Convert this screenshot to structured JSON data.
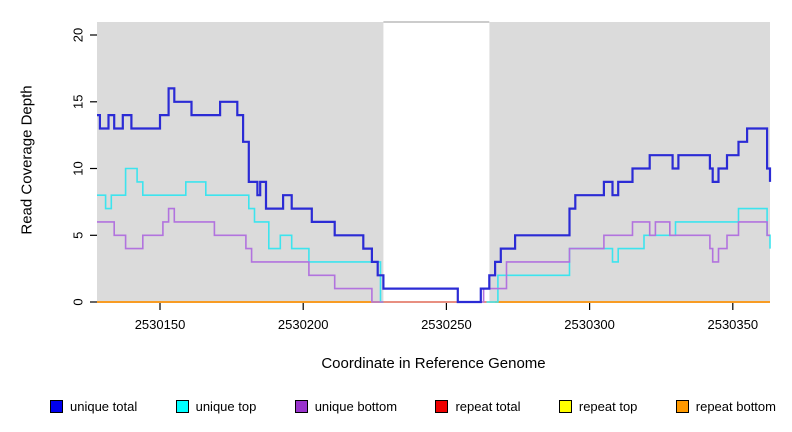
{
  "chart_data": {
    "type": "line",
    "subtype": "step-coverage",
    "title": "",
    "xlabel": "Coordinate in Reference Genome",
    "ylabel": "Read Coverage Depth",
    "xlim": [
      2530128,
      2530363
    ],
    "ylim": [
      0,
      21
    ],
    "xticks": [
      2530150,
      2530200,
      2530250,
      2530300,
      2530350
    ],
    "yticks": [
      0,
      5,
      10,
      15,
      20
    ],
    "grid": false,
    "panel_bg": "#DBDBDB",
    "highlight_band": {
      "x0": 2530228,
      "x1": 2530265,
      "color": "#FFFFFF"
    },
    "draw_order": [
      4,
      3,
      5,
      1,
      2,
      0
    ],
    "series": [
      {
        "name": "unique total",
        "color": "#2B2BD5",
        "width": 2.2,
        "segments": [
          [
            [
              2530128,
              14
            ],
            [
              2530129,
              13
            ],
            [
              2530132,
              14
            ],
            [
              2530134,
              13
            ],
            [
              2530137,
              14
            ],
            [
              2530140,
              13
            ],
            [
              2530150,
              14
            ],
            [
              2530153,
              16
            ],
            [
              2530155,
              15
            ],
            [
              2530161,
              14
            ],
            [
              2530171,
              15
            ],
            [
              2530177,
              14
            ],
            [
              2530179,
              12
            ],
            [
              2530181,
              9
            ],
            [
              2530184,
              8
            ],
            [
              2530185,
              9
            ],
            [
              2530187,
              7
            ],
            [
              2530193,
              8
            ],
            [
              2530196,
              7
            ],
            [
              2530203,
              6
            ],
            [
              2530211,
              5
            ],
            [
              2530221,
              4
            ],
            [
              2530224,
              3
            ],
            [
              2530226,
              2
            ],
            [
              2530228,
              1
            ],
            [
              2530254,
              0
            ],
            [
              2530262,
              1
            ],
            [
              2530265,
              2
            ],
            [
              2530267,
              3
            ],
            [
              2530269,
              4
            ],
            [
              2530274,
              5
            ],
            [
              2530293,
              7
            ],
            [
              2530295,
              8
            ],
            [
              2530305,
              9
            ],
            [
              2530308,
              8
            ],
            [
              2530310,
              9
            ],
            [
              2530315,
              10
            ],
            [
              2530321,
              11
            ],
            [
              2530329,
              10
            ],
            [
              2530331,
              11
            ],
            [
              2530342,
              10
            ],
            [
              2530343,
              9
            ],
            [
              2530345,
              10
            ],
            [
              2530348,
              11
            ],
            [
              2530352,
              12
            ],
            [
              2530355,
              13
            ],
            [
              2530362,
              10
            ],
            [
              2530363,
              9
            ]
          ]
        ]
      },
      {
        "name": "unique top",
        "color": "#3CE4EE",
        "width": 1.6,
        "segments": [
          [
            [
              2530128,
              8
            ],
            [
              2530131,
              7
            ],
            [
              2530133,
              8
            ],
            [
              2530138,
              10
            ],
            [
              2530142,
              9
            ],
            [
              2530144,
              8
            ],
            [
              2530159,
              9
            ],
            [
              2530166,
              8
            ],
            [
              2530181,
              7
            ],
            [
              2530183,
              6
            ],
            [
              2530188,
              4
            ],
            [
              2530192,
              5
            ],
            [
              2530196,
              4
            ],
            [
              2530202,
              3
            ],
            [
              2530227,
              0
            ],
            [
              2530228,
              0
            ]
          ],
          [
            [
              2530264,
              0
            ],
            [
              2530268,
              2
            ],
            [
              2530293,
              4
            ],
            [
              2530308,
              3
            ],
            [
              2530310,
              4
            ],
            [
              2530319,
              5
            ],
            [
              2530330,
              6
            ],
            [
              2530352,
              7
            ],
            [
              2530362,
              5
            ],
            [
              2530363,
              4
            ]
          ]
        ]
      },
      {
        "name": "unique bottom",
        "color": "#B273DE",
        "width": 1.6,
        "segments": [
          [
            [
              2530128,
              6
            ],
            [
              2530134,
              5
            ],
            [
              2530138,
              4
            ],
            [
              2530144,
              5
            ],
            [
              2530151,
              6
            ],
            [
              2530153,
              7
            ],
            [
              2530155,
              6
            ],
            [
              2530169,
              5
            ],
            [
              2530180,
              4
            ],
            [
              2530182,
              3
            ],
            [
              2530202,
              2
            ],
            [
              2530211,
              1
            ],
            [
              2530224,
              0
            ],
            [
              2530228,
              0
            ]
          ],
          [
            [
              2530262,
              0
            ],
            [
              2530263,
              1
            ],
            [
              2530271,
              3
            ],
            [
              2530293,
              4
            ],
            [
              2530305,
              5
            ],
            [
              2530315,
              6
            ],
            [
              2530321,
              5
            ],
            [
              2530323,
              6
            ],
            [
              2530328,
              5
            ],
            [
              2530342,
              4
            ],
            [
              2530343,
              3
            ],
            [
              2530345,
              4
            ],
            [
              2530348,
              5
            ],
            [
              2530352,
              6
            ],
            [
              2530362,
              5
            ],
            [
              2530363,
              5
            ]
          ]
        ]
      },
      {
        "name": "repeat total",
        "color": "#DB4C5C",
        "width": 1.3,
        "segments": [
          [
            [
              2530128,
              0
            ],
            [
              2530363,
              0
            ]
          ]
        ]
      },
      {
        "name": "repeat top",
        "color": "#FFFF00",
        "width": 1.3,
        "segments": [
          [
            [
              2530128,
              0
            ],
            [
              2530363,
              0
            ]
          ]
        ]
      },
      {
        "name": "repeat bottom",
        "color": "#FF9100",
        "width": 1.6,
        "segments": [
          [
            [
              2530128,
              0
            ],
            [
              2530228,
              0
            ]
          ],
          [
            [
              2530267,
              0
            ],
            [
              2530363,
              0
            ]
          ]
        ]
      }
    ]
  },
  "legend": {
    "items": [
      {
        "label": "unique total",
        "color": "#0000EE"
      },
      {
        "label": "unique top",
        "color": "#00FFFF"
      },
      {
        "label": "unique bottom",
        "color": "#9933CC"
      },
      {
        "label": "repeat total",
        "color": "#EE0000"
      },
      {
        "label": "repeat top",
        "color": "#FFFF00"
      },
      {
        "label": "repeat bottom",
        "color": "#FF9900"
      }
    ]
  }
}
